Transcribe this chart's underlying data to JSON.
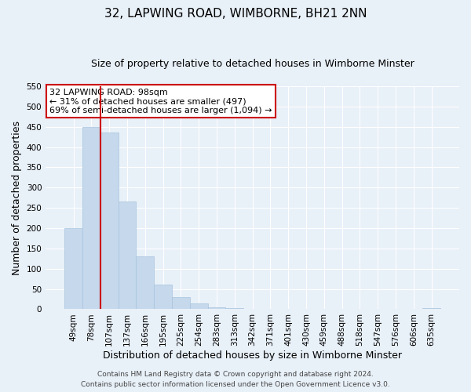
{
  "title": "32, LAPWING ROAD, WIMBORNE, BH21 2NN",
  "subtitle": "Size of property relative to detached houses in Wimborne Minster",
  "xlabel": "Distribution of detached houses by size in Wimborne Minster",
  "ylabel": "Number of detached properties",
  "bar_labels": [
    "49sqm",
    "78sqm",
    "107sqm",
    "137sqm",
    "166sqm",
    "195sqm",
    "225sqm",
    "254sqm",
    "283sqm",
    "313sqm",
    "342sqm",
    "371sqm",
    "401sqm",
    "430sqm",
    "459sqm",
    "488sqm",
    "518sqm",
    "547sqm",
    "576sqm",
    "606sqm",
    "635sqm"
  ],
  "bar_values": [
    200,
    450,
    435,
    265,
    130,
    60,
    30,
    15,
    5,
    2,
    1,
    1,
    1,
    0,
    0,
    0,
    1,
    0,
    0,
    0,
    2
  ],
  "bar_color": "#c5d8ec",
  "bar_edge_color": "#a8c4dd",
  "vline_color": "#cc0000",
  "ylim": [
    0,
    550
  ],
  "yticks": [
    0,
    50,
    100,
    150,
    200,
    250,
    300,
    350,
    400,
    450,
    500,
    550
  ],
  "annotation_title": "32 LAPWING ROAD: 98sqm",
  "annotation_line1": "← 31% of detached houses are smaller (497)",
  "annotation_line2": "69% of semi-detached houses are larger (1,094) →",
  "annotation_box_color": "white",
  "annotation_box_edge_color": "#cc0000",
  "footer1": "Contains HM Land Registry data © Crown copyright and database right 2024.",
  "footer2": "Contains public sector information licensed under the Open Government Licence v3.0.",
  "background_color": "#e8f0f8",
  "plot_bg_color": "#e8f0f8",
  "grid_color": "white",
  "title_fontsize": 11,
  "subtitle_fontsize": 9,
  "axis_label_fontsize": 9,
  "tick_fontsize": 7.5,
  "annotation_fontsize": 8,
  "footer_fontsize": 6.5
}
